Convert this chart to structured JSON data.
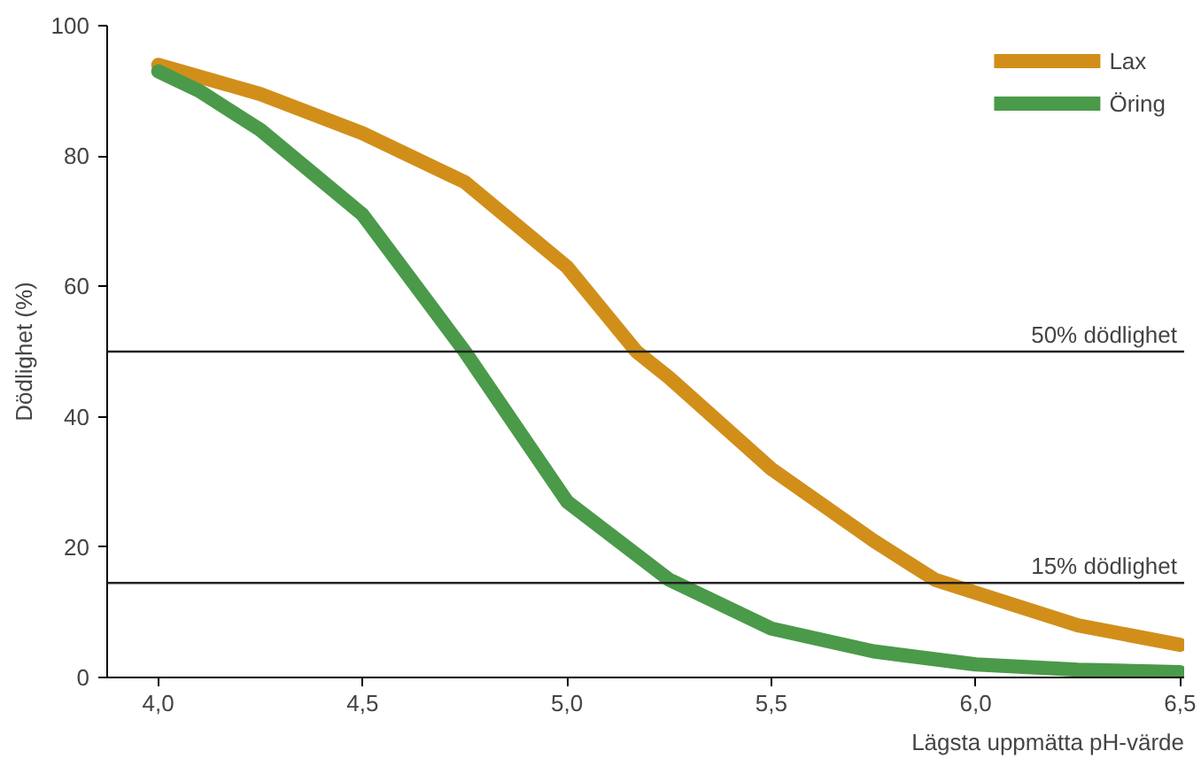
{
  "chart_data": {
    "type": "line",
    "xlabel": "Lägsta uppmätta pH-värde",
    "ylabel": "Dödlighet (%)",
    "xlim": [
      3.875,
      6.51
    ],
    "ylim": [
      0,
      100
    ],
    "xticks": [
      {
        "value": 4.0,
        "label": "4,0"
      },
      {
        "value": 4.5,
        "label": "4,5"
      },
      {
        "value": 5.0,
        "label": "5,0"
      },
      {
        "value": 5.5,
        "label": "5,5"
      },
      {
        "value": 6.0,
        "label": "6,0"
      },
      {
        "value": 6.5,
        "label": "6,5"
      }
    ],
    "yticks": [
      0,
      20,
      40,
      60,
      80,
      100
    ],
    "grid": false,
    "legend": "top right",
    "marker": "none",
    "line_style": "solid",
    "series": [
      {
        "name": "Lax",
        "color": "#d18f1a",
        "x": [
          4.0,
          4.25,
          4.5,
          4.75,
          5.0,
          5.17,
          5.25,
          5.5,
          5.75,
          5.9,
          6.0,
          6.25,
          6.5
        ],
        "values": [
          94,
          89.5,
          83.5,
          76,
          63,
          50,
          46,
          32,
          21,
          15,
          13,
          8,
          5
        ]
      },
      {
        "name": "Öring",
        "color": "#4a9a4a",
        "x": [
          4.0,
          4.1,
          4.25,
          4.5,
          4.75,
          5.0,
          5.25,
          5.5,
          5.75,
          6.0,
          6.25,
          6.5
        ],
        "values": [
          93,
          90,
          84,
          71,
          50,
          27,
          15,
          7.5,
          4,
          2,
          1.2,
          0.8
        ]
      }
    ],
    "ref_lines": [
      {
        "axis": "y",
        "value": 50,
        "label": "50% dödlighet",
        "color": "#222222"
      },
      {
        "axis": "y",
        "value": 14.5,
        "label": "15% dödlighet",
        "color": "#222222"
      }
    ]
  }
}
